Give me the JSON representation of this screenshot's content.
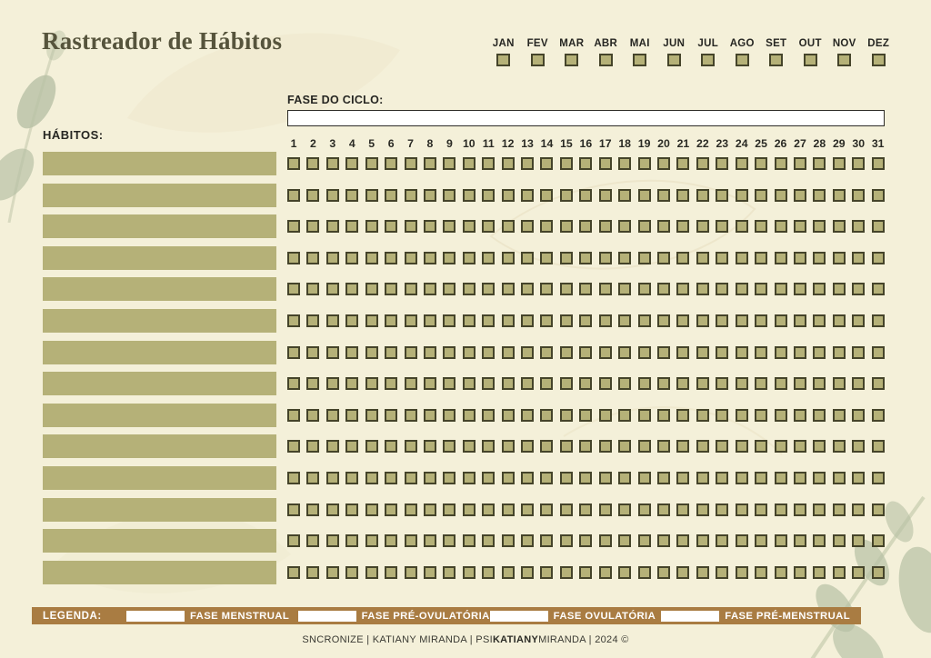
{
  "page": {
    "title": "Rastreador de Hábitos"
  },
  "months": {
    "labels": [
      "JAN",
      "FEV",
      "MAR",
      "ABR",
      "MAI",
      "JUN",
      "JUL",
      "AGO",
      "SET",
      "OUT",
      "NOV",
      "DEZ"
    ]
  },
  "cycle": {
    "label": "FASE DO CICLO:",
    "value": "",
    "placeholder": ""
  },
  "habits": {
    "label": "HÁBITOS:",
    "rows": 14,
    "values": [
      "",
      "",
      "",
      "",
      "",
      "",
      "",
      "",
      "",
      "",
      "",
      "",
      "",
      ""
    ]
  },
  "grid": {
    "days": [
      "1",
      "2",
      "3",
      "4",
      "5",
      "6",
      "7",
      "8",
      "9",
      "10",
      "11",
      "12",
      "13",
      "14",
      "15",
      "16",
      "17",
      "18",
      "19",
      "20",
      "21",
      "22",
      "23",
      "24",
      "25",
      "26",
      "27",
      "28",
      "29",
      "30",
      "31"
    ],
    "rows": 14,
    "cols": 31
  },
  "legend": {
    "title": "LEGENDA:",
    "items": [
      {
        "swatch_color": "#ffffff",
        "label": "FASE MENSTRUAL"
      },
      {
        "swatch_color": "#ffffff",
        "label": "FASE PRÉ-OVULATÓRIA"
      },
      {
        "swatch_color": "#ffffff",
        "label": "FASE OVULATÓRIA"
      },
      {
        "swatch_color": "#ffffff",
        "label": "FASE PRÉ-MENSTRUAL"
      }
    ]
  },
  "footer": {
    "part1": "SNCRONIZE | KATIANY MIRANDA | PSI",
    "part2_bold": "KATIANY",
    "part3": "MIRANDA |  2024 ©"
  },
  "colors": {
    "background": "#f4f0d9",
    "olive": "#b5b178",
    "square_border": "#45442a",
    "legend_brown": "#a97c42",
    "text_dark": "#262622",
    "title": "#56543c",
    "white": "#ffffff",
    "leaf_sage": "#b7c0a5"
  }
}
